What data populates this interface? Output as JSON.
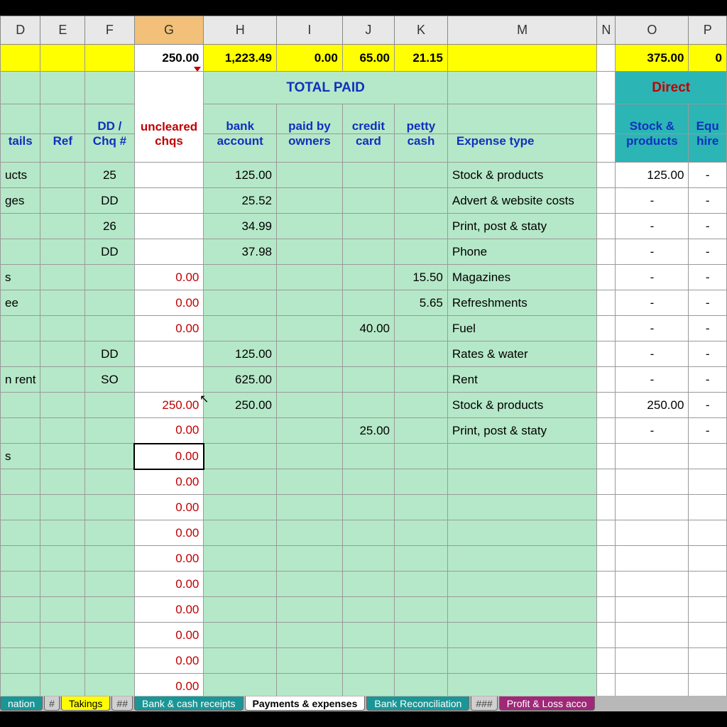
{
  "columns": {
    "letters": [
      "D",
      "E",
      "F",
      "G",
      "H",
      "I",
      "J",
      "K",
      "M",
      "N",
      "O",
      "P"
    ],
    "widths": [
      56,
      64,
      70,
      98,
      104,
      94,
      74,
      76,
      212,
      20,
      104,
      54
    ],
    "selected": "G"
  },
  "totals_row": {
    "G": "250.00",
    "H": "1,223.49",
    "I": "0.00",
    "J": "65.00",
    "K": "21.15",
    "O": "375.00",
    "P": "0"
  },
  "section_headers": {
    "total_paid": "TOTAL PAID",
    "direct": "Direct"
  },
  "col_headers": {
    "D": "tails",
    "E": "Ref",
    "F_top": "DD /",
    "F_bot": "Chq #",
    "G_top": "uncleared",
    "G_bot": "chqs",
    "H_top": "bank",
    "H_bot": "account",
    "I_top": "paid by",
    "I_bot": "owners",
    "J_top": "credit",
    "J_bot": "card",
    "K_top": "petty",
    "K_bot": "cash",
    "M": "Expense type",
    "O_top": "Stock &",
    "O_bot": "products",
    "P_top": "Equ",
    "P_bot": "hire"
  },
  "rows": [
    {
      "D": "ucts",
      "E": "",
      "F": "25",
      "G": "",
      "H": "125.00",
      "I": "",
      "J": "",
      "K": "",
      "M": "Stock & products",
      "O": "125.00",
      "P": "-"
    },
    {
      "D": "ges",
      "E": "",
      "F": "DD",
      "G": "",
      "H": "25.52",
      "I": "",
      "J": "",
      "K": "",
      "M": "Advert & website costs",
      "O": "-",
      "P": "-"
    },
    {
      "D": "",
      "E": "",
      "F": "26",
      "G": "",
      "H": "34.99",
      "I": "",
      "J": "",
      "K": "",
      "M": "Print, post & staty",
      "O": "-",
      "P": "-"
    },
    {
      "D": "",
      "E": "",
      "F": "DD",
      "G": "",
      "H": "37.98",
      "I": "",
      "J": "",
      "K": "",
      "M": "Phone",
      "O": "-",
      "P": "-"
    },
    {
      "D": "s",
      "E": "",
      "F": "",
      "G": "0.00",
      "H": "",
      "I": "",
      "J": "",
      "K": "15.50",
      "M": "Magazines",
      "O": "-",
      "P": "-"
    },
    {
      "D": "ee",
      "E": "",
      "F": "",
      "G": "0.00",
      "H": "",
      "I": "",
      "J": "",
      "K": "5.65",
      "M": "Refreshments",
      "O": "-",
      "P": "-"
    },
    {
      "D": "",
      "E": "",
      "F": "",
      "G": "0.00",
      "H": "",
      "I": "",
      "J": "40.00",
      "K": "",
      "M": "Fuel",
      "O": "-",
      "P": "-"
    },
    {
      "D": "",
      "E": "",
      "F": "DD",
      "G": "",
      "H": "125.00",
      "I": "",
      "J": "",
      "K": "",
      "M": "Rates & water",
      "O": "-",
      "P": "-"
    },
    {
      "D": "n rent",
      "E": "",
      "F": "SO",
      "G": "",
      "H": "625.00",
      "I": "",
      "J": "",
      "K": "",
      "M": "Rent",
      "O": "-",
      "P": "-"
    },
    {
      "D": "",
      "E": "",
      "F": "",
      "G": "250.00",
      "H": "250.00",
      "I": "",
      "J": "",
      "K": "",
      "M": "Stock & products",
      "O": "250.00",
      "P": "-"
    },
    {
      "D": "",
      "E": "",
      "F": "",
      "G": "0.00",
      "H": "",
      "I": "",
      "J": "25.00",
      "K": "",
      "M": "Print, post & staty",
      "O": "-",
      "P": "-"
    },
    {
      "D": "s",
      "E": "",
      "F": "",
      "G": "0.00",
      "H": "",
      "I": "",
      "J": "",
      "K": "",
      "M": "",
      "O": "",
      "P": "",
      "sel": true
    },
    {
      "D": "",
      "E": "",
      "F": "",
      "G": "0.00",
      "H": "",
      "I": "",
      "J": "",
      "K": "",
      "M": "",
      "O": "",
      "P": ""
    },
    {
      "D": "",
      "E": "",
      "F": "",
      "G": "0.00",
      "H": "",
      "I": "",
      "J": "",
      "K": "",
      "M": "",
      "O": "",
      "P": ""
    },
    {
      "D": "",
      "E": "",
      "F": "",
      "G": "0.00",
      "H": "",
      "I": "",
      "J": "",
      "K": "",
      "M": "",
      "O": "",
      "P": ""
    },
    {
      "D": "",
      "E": "",
      "F": "",
      "G": "0.00",
      "H": "",
      "I": "",
      "J": "",
      "K": "",
      "M": "",
      "O": "",
      "P": ""
    },
    {
      "D": "",
      "E": "",
      "F": "",
      "G": "0.00",
      "H": "",
      "I": "",
      "J": "",
      "K": "",
      "M": "",
      "O": "",
      "P": ""
    },
    {
      "D": "",
      "E": "",
      "F": "",
      "G": "0.00",
      "H": "",
      "I": "",
      "J": "",
      "K": "",
      "M": "",
      "O": "",
      "P": ""
    },
    {
      "D": "",
      "E": "",
      "F": "",
      "G": "0.00",
      "H": "",
      "I": "",
      "J": "",
      "K": "",
      "M": "",
      "O": "",
      "P": ""
    },
    {
      "D": "",
      "E": "",
      "F": "",
      "G": "0.00",
      "H": "",
      "I": "",
      "J": "",
      "K": "",
      "M": "",
      "O": "",
      "P": ""
    },
    {
      "D": "",
      "E": "",
      "F": "",
      "G": "0.00",
      "H": "",
      "I": "",
      "J": "",
      "K": "",
      "M": "",
      "O": "",
      "P": ""
    }
  ],
  "tabs": [
    {
      "label": "nation",
      "style": "teal"
    },
    {
      "label": "#",
      "style": "sep"
    },
    {
      "label": "Takings",
      "style": "yellow"
    },
    {
      "label": "##",
      "style": "sep"
    },
    {
      "label": "Bank & cash receipts",
      "style": "teal"
    },
    {
      "label": "Payments & expenses",
      "style": "active"
    },
    {
      "label": "Bank Reconciliation",
      "style": "teal"
    },
    {
      "label": "###",
      "style": "sep"
    },
    {
      "label": "Profit & Loss acco",
      "style": "purple"
    }
  ],
  "colors": {
    "green_fill": "#b5e8c8",
    "yellow_fill": "#ffff00",
    "teal_fill": "#2bb5b5",
    "blue_text": "#1030c0",
    "red_text": "#c00000",
    "grid_border": "#9a9a9a",
    "col_head_bg": "#e8e8e8",
    "col_head_sel": "#f2c078"
  }
}
